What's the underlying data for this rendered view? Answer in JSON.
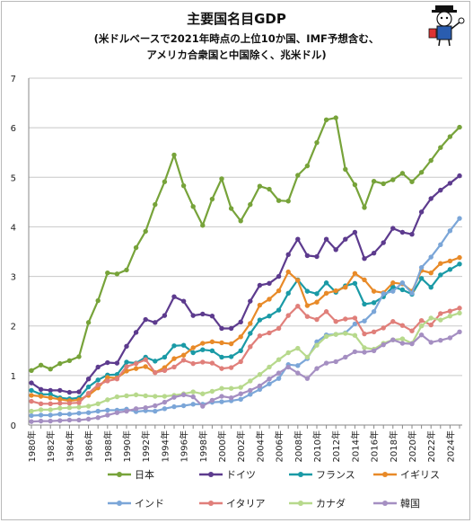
{
  "chart_data": {
    "type": "line",
    "title": "主要国名目GDP",
    "subtitle_lines": [
      "(米ドルベースで2021年時点の上位10か国、IMF予想含む、",
      "アメリカ合衆国と中国除く、兆米ドル)"
    ],
    "xlabel": "",
    "ylabel": "",
    "ylim": [
      0,
      7
    ],
    "yticks": [
      "0",
      "1",
      "2",
      "3",
      "4",
      "5",
      "6",
      "7"
    ],
    "x_start": 1980,
    "x_end": 2025,
    "xtick_labels": [
      "1980年",
      "1982年",
      "1984年",
      "1986年",
      "1988年",
      "1990年",
      "1992年",
      "1994年",
      "1996年",
      "1998年",
      "2000年",
      "2002年",
      "2004年",
      "2006年",
      "2008年",
      "2010年",
      "2012年",
      "2014年",
      "2016年",
      "2018年",
      "2020年",
      "2022年",
      "2024年"
    ],
    "grid": "horizontal",
    "legend_position": "bottom",
    "series": [
      {
        "name": "日本",
        "color": "#77a33a",
        "values": [
          1.1,
          1.21,
          1.13,
          1.24,
          1.3,
          1.38,
          2.07,
          2.51,
          3.07,
          3.05,
          3.13,
          3.58,
          3.91,
          4.45,
          4.91,
          5.45,
          4.83,
          4.41,
          4.03,
          4.56,
          4.97,
          4.37,
          4.12,
          4.45,
          4.82,
          4.76,
          4.53,
          4.52,
          5.04,
          5.23,
          5.7,
          6.16,
          6.2,
          5.16,
          4.85,
          4.39,
          4.92,
          4.87,
          4.95,
          5.08,
          4.91,
          5.1,
          5.34,
          5.6,
          5.82,
          6.01
        ]
      },
      {
        "name": "ドイツ",
        "color": "#5d3b8e",
        "values": [
          0.85,
          0.72,
          0.7,
          0.7,
          0.66,
          0.67,
          0.93,
          1.17,
          1.26,
          1.25,
          1.59,
          1.87,
          2.13,
          2.07,
          2.21,
          2.59,
          2.5,
          2.21,
          2.24,
          2.2,
          1.95,
          1.95,
          2.08,
          2.5,
          2.82,
          2.86,
          3.0,
          3.44,
          3.75,
          3.42,
          3.4,
          3.75,
          3.54,
          3.75,
          3.89,
          3.36,
          3.47,
          3.68,
          3.97,
          3.89,
          3.85,
          4.3,
          4.57,
          4.74,
          4.88,
          5.03
        ]
      },
      {
        "name": "フランス",
        "color": "#1a9aa6",
        "values": [
          0.7,
          0.62,
          0.62,
          0.55,
          0.53,
          0.55,
          0.77,
          0.91,
          1.01,
          1.02,
          1.27,
          1.25,
          1.37,
          1.29,
          1.37,
          1.6,
          1.61,
          1.46,
          1.52,
          1.5,
          1.37,
          1.38,
          1.5,
          1.85,
          2.12,
          2.2,
          2.32,
          2.66,
          2.93,
          2.7,
          2.65,
          2.87,
          2.68,
          2.81,
          2.86,
          2.44,
          2.47,
          2.59,
          2.79,
          2.73,
          2.64,
          2.96,
          2.78,
          3.03,
          3.14,
          3.25
        ]
      },
      {
        "name": "イギリス",
        "color": "#e88a28",
        "values": [
          0.6,
          0.58,
          0.55,
          0.52,
          0.49,
          0.51,
          0.6,
          0.75,
          0.96,
          0.95,
          1.09,
          1.14,
          1.18,
          1.06,
          1.16,
          1.34,
          1.41,
          1.56,
          1.65,
          1.68,
          1.66,
          1.64,
          1.78,
          2.05,
          2.42,
          2.54,
          2.71,
          3.09,
          2.92,
          2.41,
          2.48,
          2.66,
          2.71,
          2.78,
          3.06,
          2.93,
          2.7,
          2.67,
          2.87,
          2.85,
          2.7,
          3.12,
          3.07,
          3.26,
          3.31,
          3.38
        ]
      },
      {
        "name": "インド",
        "color": "#7ba6d8",
        "values": [
          0.19,
          0.2,
          0.2,
          0.22,
          0.22,
          0.24,
          0.25,
          0.28,
          0.3,
          0.3,
          0.32,
          0.27,
          0.29,
          0.28,
          0.33,
          0.37,
          0.39,
          0.42,
          0.42,
          0.46,
          0.47,
          0.49,
          0.52,
          0.62,
          0.72,
          0.83,
          0.94,
          1.22,
          1.2,
          1.34,
          1.68,
          1.82,
          1.83,
          1.86,
          2.04,
          2.1,
          2.29,
          2.65,
          2.7,
          2.87,
          2.66,
          3.18,
          3.39,
          3.64,
          3.92,
          4.17
        ]
      },
      {
        "name": "イタリア",
        "color": "#e07f7a",
        "values": [
          0.48,
          0.43,
          0.43,
          0.44,
          0.44,
          0.45,
          0.64,
          0.81,
          0.89,
          0.93,
          1.18,
          1.24,
          1.32,
          1.06,
          1.1,
          1.17,
          1.31,
          1.24,
          1.27,
          1.25,
          1.14,
          1.16,
          1.28,
          1.58,
          1.8,
          1.86,
          1.95,
          2.21,
          2.4,
          2.19,
          2.13,
          2.29,
          2.09,
          2.14,
          2.16,
          1.84,
          1.88,
          1.96,
          2.09,
          2.01,
          1.9,
          2.11,
          2.02,
          2.25,
          2.3,
          2.36
        ]
      },
      {
        "name": "カナダ",
        "color": "#b7d98c",
        "values": [
          0.28,
          0.31,
          0.31,
          0.34,
          0.35,
          0.36,
          0.38,
          0.43,
          0.51,
          0.57,
          0.59,
          0.61,
          0.59,
          0.58,
          0.58,
          0.6,
          0.63,
          0.67,
          0.63,
          0.68,
          0.74,
          0.74,
          0.76,
          0.89,
          1.02,
          1.17,
          1.32,
          1.46,
          1.55,
          1.37,
          1.61,
          1.79,
          1.83,
          1.85,
          1.81,
          1.56,
          1.53,
          1.65,
          1.72,
          1.74,
          1.65,
          2.0,
          2.16,
          2.12,
          2.2,
          2.26
        ]
      },
      {
        "name": "韓国",
        "color": "#a58fc2",
        "values": [
          0.07,
          0.08,
          0.08,
          0.09,
          0.1,
          0.1,
          0.12,
          0.15,
          0.2,
          0.25,
          0.28,
          0.33,
          0.35,
          0.39,
          0.46,
          0.56,
          0.61,
          0.57,
          0.38,
          0.5,
          0.58,
          0.55,
          0.63,
          0.7,
          0.79,
          0.93,
          1.05,
          1.17,
          1.05,
          0.94,
          1.14,
          1.25,
          1.28,
          1.37,
          1.48,
          1.47,
          1.5,
          1.62,
          1.72,
          1.65,
          1.64,
          1.82,
          1.67,
          1.71,
          1.76,
          1.88
        ]
      }
    ]
  }
}
